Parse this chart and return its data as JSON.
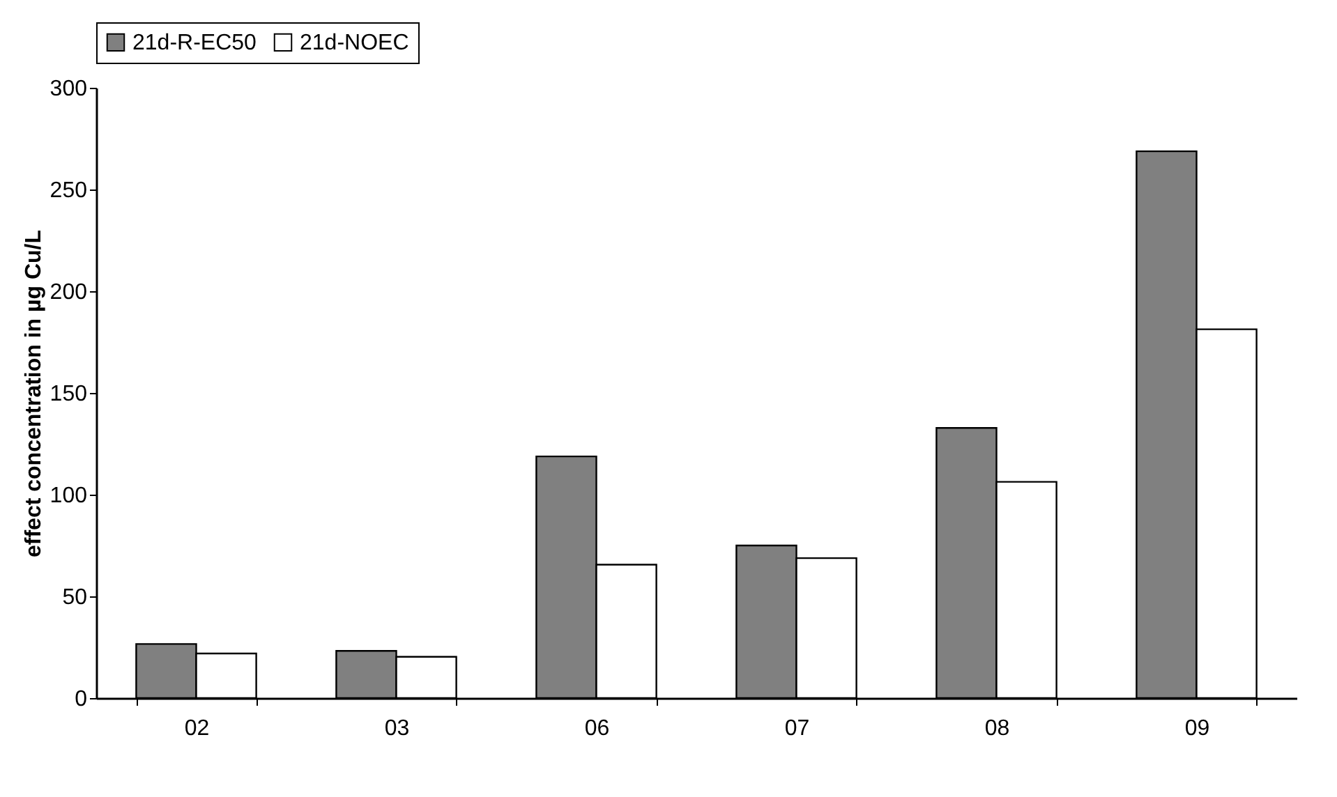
{
  "chart_data": {
    "type": "bar",
    "ylabel": "effect concentration in µg Cu/L",
    "categories": [
      "02",
      "03",
      "06",
      "07",
      "08",
      "09"
    ],
    "series": [
      {
        "name": "21d-R-EC50",
        "color": "#808080",
        "values": [
          26.6,
          23.2,
          118.8,
          75,
          132.8,
          268.8
        ]
      },
      {
        "name": "21d-NOEC",
        "color": "#ffffff",
        "values": [
          21.9,
          20.3,
          65.6,
          68.8,
          106.3,
          181.3
        ]
      }
    ],
    "ylim": [
      0,
      300
    ],
    "yticks": [
      0,
      50,
      100,
      150,
      200,
      250,
      300
    ],
    "grid": false,
    "legend": "top"
  }
}
